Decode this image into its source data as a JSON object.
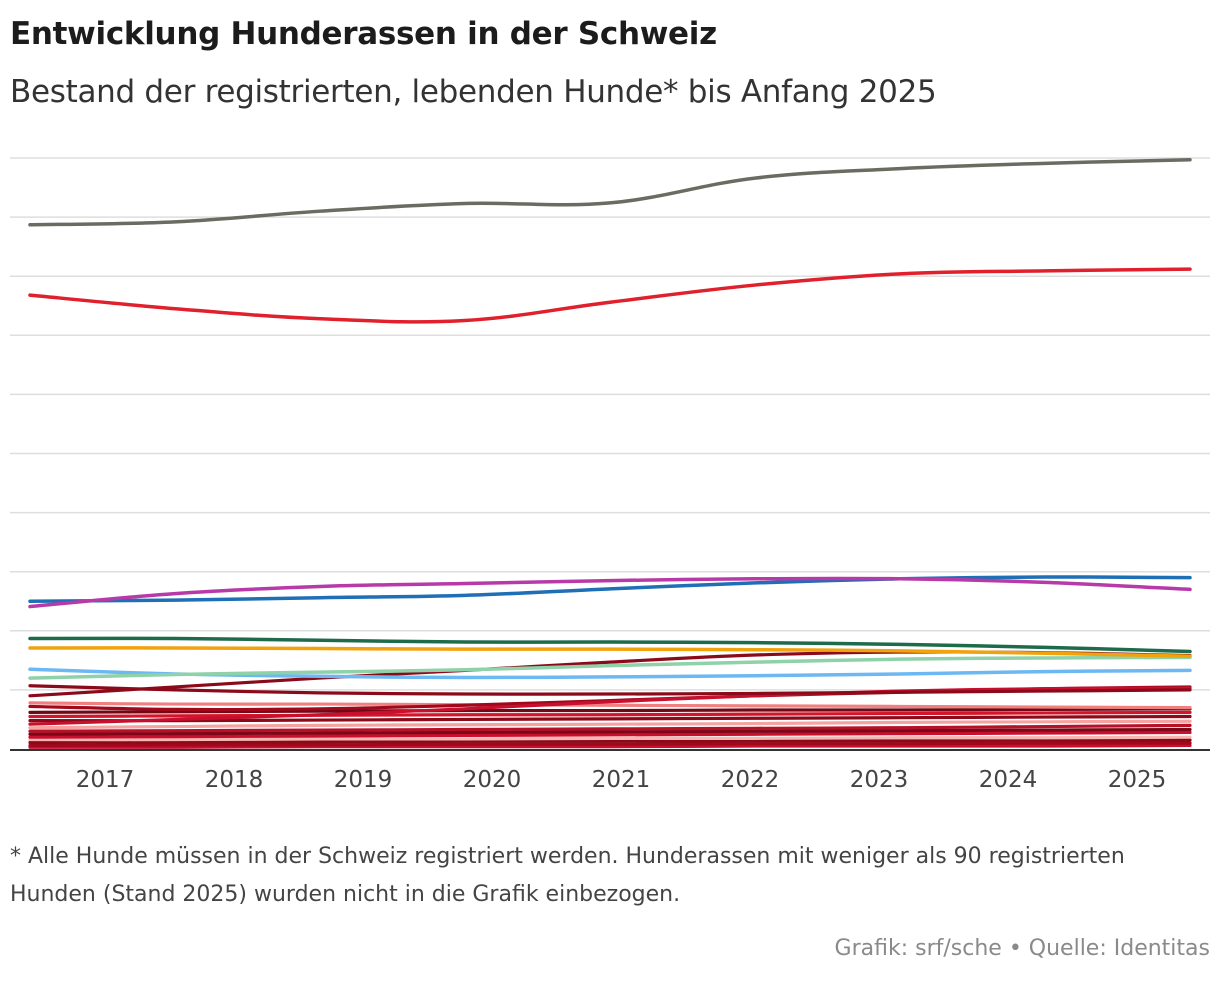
{
  "title": "Entwicklung Hunderassen in der Schweiz",
  "subtitle": "Bestand der registrierten, lebenden Hunde* bis Anfang 2025",
  "note": "* Alle Hunde müssen in der Schweiz registriert werden. Hunderassen mit weniger als 90 registrierten Hunden (Stand 2025) wurden nicht in die Grafik einbezogen.",
  "credit": "Grafik: srf/sche • Quelle: Identitas",
  "chart_data": {
    "type": "line",
    "title": "Entwicklung Hunderassen in der Schweiz",
    "xlabel": "",
    "ylabel": "",
    "grid": true,
    "y_tick_labels_shown": false,
    "categories": [
      "2017",
      "2018",
      "2019",
      "2020",
      "2021",
      "2022",
      "2023",
      "2024",
      "2025"
    ],
    "ylim": [
      0,
      10
    ],
    "series": [
      {
        "name": "grey",
        "color": "#6b6b62",
        "width": 3.5,
        "values": [
          8.87,
          8.92,
          9.1,
          9.23,
          9.24,
          9.66,
          9.82,
          9.91,
          9.97
        ]
      },
      {
        "name": "red",
        "color": "#e0202c",
        "width": 3.5,
        "values": [
          7.68,
          7.45,
          7.28,
          7.25,
          7.56,
          7.85,
          8.04,
          8.09,
          8.12
        ]
      },
      {
        "name": "magenta",
        "color": "#b83aa8",
        "width": 3.5,
        "values": [
          2.41,
          2.63,
          2.75,
          2.8,
          2.85,
          2.88,
          2.88,
          2.82,
          2.7
        ]
      },
      {
        "name": "blue",
        "color": "#1f6fb6",
        "width": 3.5,
        "values": [
          2.5,
          2.52,
          2.56,
          2.6,
          2.71,
          2.81,
          2.88,
          2.91,
          2.9
        ]
      },
      {
        "name": "darkgreen",
        "color": "#1d6b4a",
        "width": 3.5,
        "values": [
          1.87,
          1.87,
          1.84,
          1.81,
          1.81,
          1.8,
          1.77,
          1.72,
          1.65
        ]
      },
      {
        "name": "orange",
        "color": "#f1a30e",
        "width": 3.5,
        "values": [
          1.71,
          1.71,
          1.7,
          1.69,
          1.69,
          1.68,
          1.66,
          1.62,
          1.57
        ]
      },
      {
        "name": "lightgreen",
        "color": "#8fd1a8",
        "width": 3.5,
        "values": [
          1.2,
          1.26,
          1.3,
          1.34,
          1.41,
          1.47,
          1.52,
          1.54,
          1.55
        ]
      },
      {
        "name": "lightblue",
        "color": "#6cb8f2",
        "width": 3.5,
        "values": [
          1.35,
          1.27,
          1.23,
          1.21,
          1.22,
          1.24,
          1.27,
          1.31,
          1.33
        ]
      },
      {
        "name": "maroon1",
        "color": "#8b0a1a",
        "width": 3.2,
        "values": [
          0.9,
          1.05,
          1.2,
          1.33,
          1.47,
          1.59,
          1.64,
          1.63,
          1.58
        ]
      },
      {
        "name": "maroon2",
        "color": "#8b0a1a",
        "width": 3.2,
        "values": [
          1.07,
          1.0,
          0.95,
          0.93,
          0.93,
          0.94,
          0.96,
          0.98,
          1.0
        ]
      },
      {
        "name": "red2",
        "color": "#c8102e",
        "width": 3.2,
        "values": [
          0.42,
          0.5,
          0.58,
          0.68,
          0.8,
          0.9,
          0.98,
          1.02,
          1.03
        ]
      },
      {
        "name": "darkred3",
        "color": "#a0081c",
        "width": 3.2,
        "values": [
          0.72,
          0.67,
          0.68,
          0.74,
          0.82,
          0.9,
          0.96,
          1.02,
          1.05
        ]
      },
      {
        "name": "pink",
        "color": "#f08080",
        "width": 3.2,
        "values": [
          0.78,
          0.76,
          0.76,
          0.75,
          0.74,
          0.73,
          0.72,
          0.71,
          0.7
        ]
      },
      {
        "name": "maroon4",
        "color": "#6e0a16",
        "width": 3.2,
        "values": [
          0.62,
          0.63,
          0.64,
          0.65,
          0.65,
          0.66,
          0.66,
          0.67,
          0.68
        ]
      },
      {
        "name": "red5",
        "color": "#d4142a",
        "width": 3.2,
        "values": [
          0.55,
          0.56,
          0.57,
          0.58,
          0.58,
          0.59,
          0.6,
          0.61,
          0.62
        ]
      },
      {
        "name": "maroon6",
        "color": "#8b0a1a",
        "width": 3.2,
        "values": [
          0.48,
          0.48,
          0.49,
          0.5,
          0.51,
          0.52,
          0.53,
          0.54,
          0.55
        ]
      },
      {
        "name": "salmon",
        "color": "#f4a3a0",
        "width": 3.2,
        "values": [
          0.36,
          0.38,
          0.4,
          0.41,
          0.42,
          0.43,
          0.45,
          0.46,
          0.47
        ]
      },
      {
        "name": "red7",
        "color": "#b5122a",
        "width": 3.2,
        "values": [
          0.3,
          0.31,
          0.32,
          0.33,
          0.34,
          0.35,
          0.36,
          0.38,
          0.4
        ]
      },
      {
        "name": "maroon8",
        "color": "#7d0716",
        "width": 3.2,
        "values": [
          0.25,
          0.26,
          0.27,
          0.28,
          0.29,
          0.3,
          0.31,
          0.32,
          0.33
        ]
      },
      {
        "name": "red9",
        "color": "#c8102e",
        "width": 3.2,
        "values": [
          0.2,
          0.21,
          0.22,
          0.23,
          0.24,
          0.25,
          0.26,
          0.27,
          0.28
        ]
      },
      {
        "name": "lightpink",
        "color": "#f7b6b2",
        "width": 3.2,
        "values": [
          0.16,
          0.16,
          0.17,
          0.17,
          0.18,
          0.18,
          0.19,
          0.19,
          0.2
        ]
      },
      {
        "name": "maroon10",
        "color": "#8b0a1a",
        "width": 3.2,
        "values": [
          0.11,
          0.12,
          0.12,
          0.13,
          0.13,
          0.14,
          0.14,
          0.15,
          0.15
        ]
      },
      {
        "name": "darkred11",
        "color": "#a0081c",
        "width": 3.2,
        "values": [
          0.06,
          0.07,
          0.07,
          0.08,
          0.08,
          0.09,
          0.09,
          0.1,
          0.1
        ]
      },
      {
        "name": "red12",
        "color": "#c8102e",
        "width": 3.2,
        "values": [
          0.03,
          0.03,
          0.04,
          0.04,
          0.04,
          0.05,
          0.05,
          0.05,
          0.06
        ]
      }
    ]
  }
}
